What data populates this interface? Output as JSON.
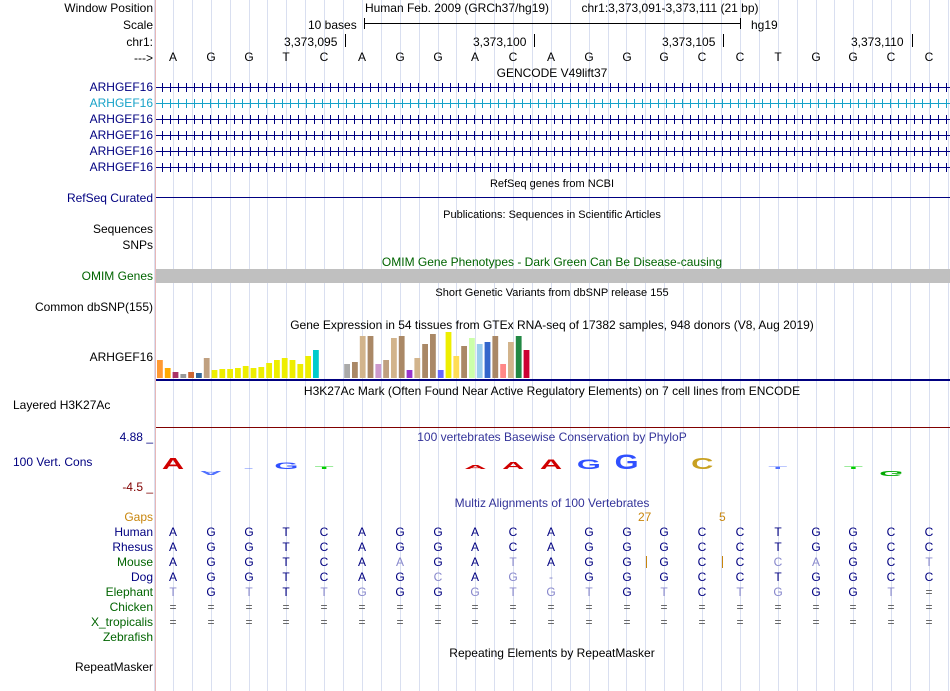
{
  "colors": {
    "navy": "#000080",
    "blue": "#1a1a8c",
    "teal": "#17a2c8",
    "green": "#006400",
    "orange": "#c8860d",
    "omim_bar": "#c0c0c0",
    "sep": "#e7b7b7",
    "grid": "#d9dff0"
  },
  "left_labels": {
    "window_position": "Window Position",
    "scale": "Scale",
    "chr": "chr1:",
    "arrow": "--->",
    "gencode_tracks": [
      "ARHGEF16",
      "ARHGEF16",
      "ARHGEF16",
      "ARHGEF16",
      "ARHGEF16",
      "ARHGEF16"
    ],
    "refseq": "RefSeq Curated",
    "sequences": "Sequences",
    "snps": "SNPs",
    "omim": "OMIM Genes",
    "dbsnp": "Common dbSNP(155)",
    "gtex_gene": "ARHGEF16",
    "h3k27ac": "Layered H3K27Ac",
    "cons_max": "4.88 _",
    "cons_label": "100 Vert. Cons",
    "cons_min": "-4.5 _",
    "gaps": "Gaps",
    "species": [
      "Human",
      "Rhesus",
      "Mouse",
      "Dog",
      "Elephant",
      "Chicken",
      "X_tropicalis",
      "Zebrafish"
    ],
    "repeatmasker": "RepeatMasker"
  },
  "header": {
    "assembly": "Human Feb. 2009 (GRCh37/hg19)",
    "position": "chr1:3,373,091-3,373,111 (21 bp)",
    "scale_label": "10 bases",
    "scale_db": "hg19",
    "coords": [
      "3,373,095",
      "3,373,100",
      "3,373,105",
      "3,373,110"
    ]
  },
  "sequence": [
    "A",
    "G",
    "G",
    "T",
    "C",
    "A",
    "G",
    "G",
    "A",
    "C",
    "A",
    "G",
    "G",
    "G",
    "C",
    "C",
    "T",
    "G",
    "G",
    "C",
    "C"
  ],
  "track_titles": {
    "gencode": "GENCODE V49lift37",
    "refseq": "RefSeq genes from NCBI",
    "publications": "Publications: Sequences in Scientific Articles",
    "omim": "OMIM Gene Phenotypes - Dark Green Can Be Disease-causing",
    "dbsnp": "Short Genetic Variants from dbSNP release 155",
    "gtex": "Gene Expression in 54 tissues from GTEx RNA-seq of 17382 samples, 948 donors (V8, Aug 2019)",
    "h3k27ac": "H3K27Ac Mark (Often Found Near Active Regulatory Elements) on 7 cell lines from ENCODE",
    "phylop": "100 vertebrates Basewise Conservation by PhyloP",
    "multiz": "Multiz Alignments of 100 Vertebrates",
    "repeatmasker": "Repeating Elements by RepeatMasker"
  },
  "gaps": {
    "col13": "27",
    "col15": "5"
  },
  "alignment": {
    "Rhesus": [
      "A",
      "G",
      "G",
      "T",
      "C",
      "A",
      "G",
      "G",
      "A",
      "C",
      "A",
      "G",
      "G",
      "G",
      "C",
      "C",
      "T",
      "G",
      "G",
      "C",
      "C"
    ],
    "Mouse": [
      "A",
      "G",
      "G",
      "T",
      "C",
      "A",
      "A",
      "G",
      "A",
      "T",
      "A",
      "G",
      "G",
      "G",
      "C",
      "C",
      "C",
      "A",
      "G",
      "C",
      "T"
    ],
    "Dog": [
      "A",
      "G",
      "G",
      "T",
      "C",
      "A",
      "G",
      "C",
      "A",
      "G",
      "-",
      "G",
      "G",
      "G",
      "C",
      "C",
      "T",
      "G",
      "G",
      "C",
      "C"
    ],
    "Elephant": [
      "T",
      "G",
      "T",
      "T",
      "T",
      "G",
      "G",
      "G",
      "G",
      "T",
      "G",
      "T",
      "G",
      "T",
      "C",
      "T",
      "G",
      "G",
      "G",
      "T",
      "="
    ],
    "Chicken": [
      "=",
      "=",
      "=",
      "=",
      "=",
      "=",
      "=",
      "=",
      "=",
      "=",
      "=",
      "=",
      "=",
      "=",
      "=",
      "=",
      "=",
      "=",
      "=",
      "=",
      "="
    ],
    "X_tropicalis": [
      "=",
      "=",
      "=",
      "=",
      "=",
      "=",
      "=",
      "=",
      "=",
      "=",
      "=",
      "=",
      "=",
      "=",
      "=",
      "=",
      "=",
      "=",
      "=",
      "=",
      "="
    ]
  },
  "gtex_bars": [
    {
      "v": 18,
      "c": "#ff9933"
    },
    {
      "v": 10,
      "c": "#ffaa00"
    },
    {
      "v": 6,
      "c": "#aa3366"
    },
    {
      "v": 4,
      "c": "#999999"
    },
    {
      "v": 6,
      "c": "#cc6633"
    },
    {
      "v": 5,
      "c": "#336699"
    },
    {
      "v": 20,
      "c": "#c0a080"
    },
    {
      "v": 8,
      "c": "#eeee00"
    },
    {
      "v": 9,
      "c": "#eeee00"
    },
    {
      "v": 9,
      "c": "#eeee00"
    },
    {
      "v": 10,
      "c": "#eeee00"
    },
    {
      "v": 12,
      "c": "#eeee00"
    },
    {
      "v": 10,
      "c": "#eeee00"
    },
    {
      "v": 11,
      "c": "#eeee00"
    },
    {
      "v": 15,
      "c": "#eeee00"
    },
    {
      "v": 18,
      "c": "#eeee00"
    },
    {
      "v": 20,
      "c": "#eeee00"
    },
    {
      "v": 18,
      "c": "#eeee00"
    },
    {
      "v": 14,
      "c": "#eeee00"
    },
    {
      "v": 22,
      "c": "#eeee00"
    },
    {
      "v": 28,
      "c": "#00cccc"
    },
    {
      "v": 0,
      "c": "#ffffff"
    },
    {
      "v": 0,
      "c": "#ffffff"
    },
    {
      "v": 0,
      "c": "#ffffff"
    },
    {
      "v": 14,
      "c": "#aaaaaa"
    },
    {
      "v": 16,
      "c": "#aa8866"
    },
    {
      "v": 42,
      "c": "#d2b48c"
    },
    {
      "v": 42,
      "c": "#aa8866"
    },
    {
      "v": 14,
      "c": "#cc99cc"
    },
    {
      "v": 18,
      "c": "#c0a080"
    },
    {
      "v": 40,
      "c": "#d2b48c"
    },
    {
      "v": 42,
      "c": "#aa8866"
    },
    {
      "v": 8,
      "c": "#9933cc"
    },
    {
      "v": 20,
      "c": "#d2b48c"
    },
    {
      "v": 34,
      "c": "#aa8866"
    },
    {
      "v": 44,
      "c": "#aa8866"
    },
    {
      "v": 8,
      "c": "#6666ff"
    },
    {
      "v": 46,
      "c": "#eeee00"
    },
    {
      "v": 22,
      "c": "#ffdd55"
    },
    {
      "v": 32,
      "c": "#aa8866"
    },
    {
      "v": 40,
      "c": "#ccffaa"
    },
    {
      "v": 34,
      "c": "#99ccee"
    },
    {
      "v": 36,
      "c": "#3366cc"
    },
    {
      "v": 42,
      "c": "#aa8866"
    },
    {
      "v": 14,
      "c": "#ff8888"
    },
    {
      "v": 36,
      "c": "#d2b48c"
    },
    {
      "v": 42,
      "c": "#228844"
    },
    {
      "v": 28,
      "c": "#cc0033"
    },
    {
      "v": 0,
      "c": "#ffffff"
    }
  ],
  "phylop": [
    {
      "b": "A",
      "c": "#d00000",
      "up": 1,
      "h": 9
    },
    {
      "b": "A",
      "c": "#5070ff",
      "up": 0,
      "h": 3
    },
    {
      "b": "-",
      "c": "#5070ff",
      "up": 1,
      "h": 2
    },
    {
      "b": "G",
      "c": "#3050ff",
      "up": 1,
      "h": 5
    },
    {
      "b": "T",
      "c": "#00cc00",
      "up": 1,
      "h": 2
    },
    {
      "b": "",
      "c": "#ffffff",
      "up": 1,
      "h": 0
    },
    {
      "b": "",
      "c": "#ffffff",
      "up": 1,
      "h": 0
    },
    {
      "b": "",
      "c": "#ffffff",
      "up": 1,
      "h": 0
    },
    {
      "b": "A",
      "c": "#d00000",
      "up": 1,
      "h": 3
    },
    {
      "b": "A",
      "c": "#d00000",
      "up": 1,
      "h": 6
    },
    {
      "b": "A",
      "c": "#d00000",
      "up": 1,
      "h": 8
    },
    {
      "b": "G",
      "c": "#3050ff",
      "up": 1,
      "h": 8
    },
    {
      "b": "G",
      "c": "#3050ff",
      "up": 1,
      "h": 12
    },
    {
      "b": "",
      "c": "#ffffff",
      "up": 1,
      "h": 0
    },
    {
      "b": "C",
      "c": "#c8a020",
      "up": 1,
      "h": 9
    },
    {
      "b": "",
      "c": "#ffffff",
      "up": 1,
      "h": 0
    },
    {
      "b": "T",
      "c": "#5070ff",
      "up": 1,
      "h": 2
    },
    {
      "b": "",
      "c": "#ffffff",
      "up": 1,
      "h": 0
    },
    {
      "b": "T",
      "c": "#00cc00",
      "up": 1,
      "h": 2
    },
    {
      "b": "G",
      "c": "#00aa00",
      "up": 0,
      "h": 4
    },
    {
      "b": "",
      "c": "#ffffff",
      "up": 1,
      "h": 0
    }
  ]
}
